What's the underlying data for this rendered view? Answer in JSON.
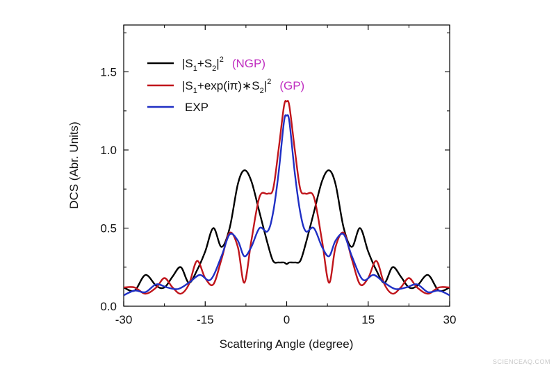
{
  "chart_data": {
    "type": "line",
    "xlabel": "Scattering Angle (degree)",
    "ylabel": "DCS (Abr. Units)",
    "xlim": [
      -30,
      30
    ],
    "ylim": [
      0,
      1.8
    ],
    "xticks": [
      "-30",
      "-15",
      "0",
      "15",
      "30"
    ],
    "yticks": [
      "0.0",
      "0.5",
      "1.0",
      "1.5"
    ],
    "legend_position": "top-left",
    "grid": false,
    "series": [
      {
        "name": "|S1+S2|^2",
        "legend": {
          "pre": "|S",
          "sub1": "1",
          "mid": "+S",
          "sub2": "2",
          "post": "|",
          "sup": "2",
          "tag": "(NGP)"
        },
        "color": "#000000",
        "x": [
          -30,
          -28,
          -26,
          -24,
          -22.5,
          -21,
          -19.5,
          -18,
          -16.5,
          -15,
          -13.5,
          -12,
          -10.5,
          -9,
          -7.8,
          -6.5,
          -5,
          -3.5,
          -2.5,
          -1.5,
          -0.5,
          0,
          0.5,
          1.5,
          2.5,
          3.5,
          5,
          6.5,
          7.8,
          9,
          10.5,
          12,
          13.5,
          15,
          16.5,
          18,
          19.5,
          21,
          22.5,
          24,
          26,
          28,
          30
        ],
        "y": [
          0.12,
          0.1,
          0.2,
          0.13,
          0.12,
          0.19,
          0.25,
          0.15,
          0.23,
          0.35,
          0.5,
          0.38,
          0.5,
          0.78,
          0.87,
          0.8,
          0.6,
          0.4,
          0.29,
          0.28,
          0.28,
          0.27,
          0.28,
          0.28,
          0.29,
          0.4,
          0.6,
          0.8,
          0.87,
          0.78,
          0.5,
          0.38,
          0.5,
          0.35,
          0.23,
          0.15,
          0.25,
          0.19,
          0.12,
          0.13,
          0.2,
          0.1,
          0.12
        ]
      },
      {
        "name": "|S1+exp(iπ)*S2|^2",
        "legend": {
          "pre": "|S",
          "sub1": "1",
          "mid": "+exp(iπ)∗S",
          "sub2": "2",
          "post": "|",
          "sup": "2",
          "tag": "(GP)"
        },
        "color": "#c0151b",
        "x": [
          -30,
          -28,
          -26,
          -24,
          -22.5,
          -21,
          -19.5,
          -18,
          -16.5,
          -15,
          -13.5,
          -12,
          -10.5,
          -9,
          -7.8,
          -6.5,
          -5,
          -3.5,
          -2.5,
          -1.5,
          -0.5,
          0,
          0.5,
          1.5,
          2.5,
          3.5,
          5,
          6.5,
          7.8,
          9,
          10.5,
          12,
          13.5,
          15,
          16.5,
          18,
          19.5,
          21,
          22.5,
          24,
          26,
          28,
          30
        ],
        "y": [
          0.12,
          0.12,
          0.08,
          0.12,
          0.18,
          0.12,
          0.08,
          0.14,
          0.29,
          0.18,
          0.14,
          0.3,
          0.47,
          0.38,
          0.15,
          0.42,
          0.7,
          0.72,
          0.75,
          1.0,
          1.28,
          1.31,
          1.28,
          1.0,
          0.75,
          0.72,
          0.7,
          0.42,
          0.15,
          0.38,
          0.47,
          0.3,
          0.14,
          0.18,
          0.29,
          0.14,
          0.08,
          0.12,
          0.18,
          0.12,
          0.08,
          0.12,
          0.12
        ]
      },
      {
        "name": "EXP",
        "legend": {
          "pre": "EXP",
          "sub1": "",
          "mid": "",
          "sub2": "",
          "post": "",
          "sup": "",
          "tag": ""
        },
        "color": "#1f2fc4",
        "x": [
          -30,
          -28,
          -26,
          -24,
          -22,
          -20,
          -18,
          -16,
          -14,
          -12,
          -10.5,
          -9,
          -7.8,
          -6.5,
          -5,
          -3.5,
          -2.5,
          -1.5,
          -0.5,
          0,
          0.5,
          1.5,
          2.5,
          3.5,
          5,
          6.5,
          7.8,
          9,
          10.5,
          12,
          14,
          16,
          18,
          20,
          22,
          24,
          26,
          28,
          30
        ],
        "y": [
          0.07,
          0.1,
          0.09,
          0.14,
          0.12,
          0.11,
          0.15,
          0.2,
          0.17,
          0.32,
          0.46,
          0.42,
          0.32,
          0.38,
          0.5,
          0.48,
          0.6,
          0.85,
          1.18,
          1.22,
          1.18,
          0.85,
          0.6,
          0.48,
          0.5,
          0.38,
          0.32,
          0.42,
          0.46,
          0.32,
          0.17,
          0.2,
          0.15,
          0.11,
          0.12,
          0.14,
          0.09,
          0.1,
          0.07
        ]
      }
    ],
    "legend_tag_color": "#c02fc0"
  },
  "watermark": "SCIENCEAQ.COM"
}
